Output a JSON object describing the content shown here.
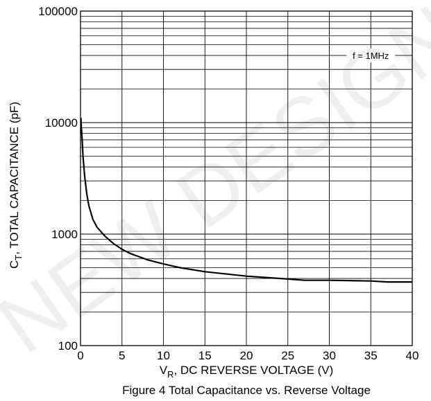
{
  "chart_data": {
    "type": "line",
    "title": "",
    "caption": "Figure 4 Total Capacitance vs. Reverse Voltage",
    "xlabel_main": "V",
    "xlabel_sub": "R",
    "xlabel_rest": ", DC REVERSE VOLTAGE (V)",
    "ylabel_main": "C",
    "ylabel_sub": "T",
    "ylabel_rest": ", TOTAL CAPACITANCE (pF)",
    "xlim": [
      0,
      40
    ],
    "ylim": [
      100,
      100000
    ],
    "y_scale": "log",
    "grid": true,
    "x_ticks": [
      0,
      5,
      10,
      15,
      20,
      25,
      30,
      35,
      40
    ],
    "x_tick_labels": [
      "0",
      "5",
      "10",
      "15",
      "20",
      "25",
      "30",
      "35",
      "40"
    ],
    "y_ticks": [
      100,
      1000,
      10000,
      100000
    ],
    "y_tick_labels": [
      "100",
      "1000",
      "10000",
      "100000"
    ],
    "annotation": "f = 1MHz",
    "watermark": "NEW DESIGN",
    "series": [
      {
        "x": [
          0.05,
          0.1,
          0.2,
          0.3,
          0.5,
          0.75,
          1,
          1.5,
          2,
          3,
          4,
          5,
          6,
          8,
          10,
          12,
          15,
          20,
          25,
          27,
          30,
          35,
          37,
          40
        ],
        "y": [
          11000,
          9000,
          7000,
          5000,
          3300,
          2300,
          1800,
          1350,
          1150,
          950,
          820,
          730,
          670,
          590,
          540,
          500,
          460,
          420,
          395,
          385,
          385,
          380,
          372,
          372
        ]
      }
    ]
  }
}
